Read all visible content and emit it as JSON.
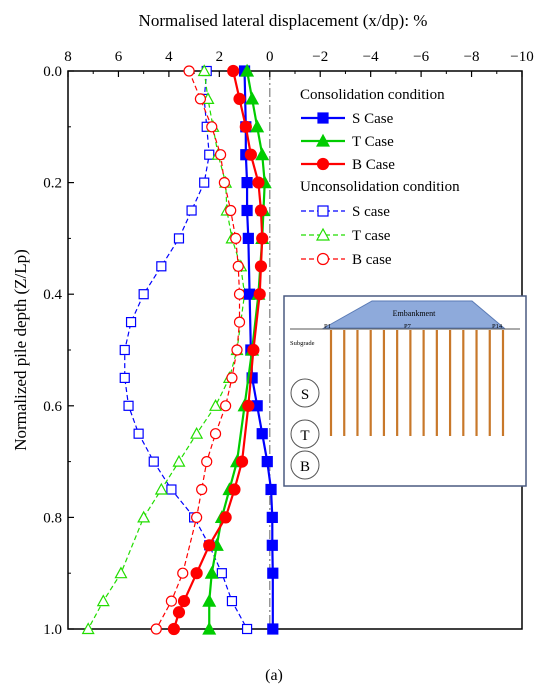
{
  "chart_data": {
    "type": "line",
    "title": "",
    "xlabel": "Normalised lateral displacement (x/dp): %",
    "ylabel": "Normalized pile depth (Z/Lp)",
    "caption": "(a)",
    "xlim": [
      8,
      -10
    ],
    "ylim": [
      0,
      1
    ],
    "x_ticks": [
      "8",
      "6",
      "4",
      "2",
      "0",
      "−2",
      "−4",
      "−6",
      "−8",
      "−10"
    ],
    "x_tick_values": [
      8,
      6,
      4,
      2,
      0,
      -2,
      -4,
      -6,
      -8,
      -10
    ],
    "y_ticks": [
      "0.0",
      "0.2",
      "0.4",
      "0.6",
      "0.8",
      "1.0"
    ],
    "y_tick_values": [
      0,
      0.2,
      0.4,
      0.6,
      0.8,
      1.0
    ],
    "reference_line_x": 0,
    "legend": {
      "position": "top-right",
      "group1": "Consolidation condition",
      "group2": "Unconsolidation condition"
    },
    "series": [
      {
        "name": "S Case",
        "color": "#0000ff",
        "style": "solid",
        "marker": "square",
        "filled": true,
        "x": [
          1.0,
          0.95,
          0.95,
          0.9,
          0.9,
          0.85,
          0.8,
          0.75,
          0.7,
          0.5,
          0.3,
          0.1,
          -0.05,
          -0.1,
          -0.1,
          -0.12,
          -0.12
        ],
        "y": [
          0.0,
          0.1,
          0.15,
          0.2,
          0.25,
          0.3,
          0.4,
          0.5,
          0.55,
          0.6,
          0.65,
          0.7,
          0.75,
          0.8,
          0.85,
          0.9,
          1.0
        ]
      },
      {
        "name": "T Case",
        "color": "#00cc00",
        "style": "solid",
        "marker": "triangle",
        "filled": true,
        "x": [
          0.9,
          0.7,
          0.5,
          0.3,
          0.2,
          0.25,
          0.3,
          0.45,
          0.7,
          1.0,
          1.3,
          1.6,
          1.9,
          2.1,
          2.3,
          2.4,
          2.4
        ],
        "y": [
          0.0,
          0.05,
          0.1,
          0.15,
          0.2,
          0.25,
          0.3,
          0.4,
          0.5,
          0.6,
          0.7,
          0.75,
          0.8,
          0.85,
          0.9,
          0.95,
          1.0
        ]
      },
      {
        "name": "B Case",
        "color": "#ff0000",
        "style": "solid",
        "marker": "circle",
        "filled": true,
        "x": [
          1.45,
          1.2,
          0.95,
          0.75,
          0.45,
          0.35,
          0.3,
          0.35,
          0.4,
          0.65,
          0.85,
          1.1,
          1.4,
          1.75,
          2.4,
          2.9,
          3.4,
          3.6,
          3.8
        ],
        "y": [
          0.0,
          0.05,
          0.1,
          0.15,
          0.2,
          0.25,
          0.3,
          0.35,
          0.4,
          0.5,
          0.6,
          0.7,
          0.75,
          0.8,
          0.85,
          0.9,
          0.95,
          0.97,
          1.0
        ]
      },
      {
        "name": "S case",
        "color": "#0000ff",
        "style": "dashed",
        "marker": "square",
        "filled": false,
        "x": [
          2.5,
          2.6,
          2.5,
          2.4,
          2.6,
          3.1,
          3.6,
          4.3,
          5.0,
          5.5,
          5.75,
          5.75,
          5.6,
          5.2,
          4.6,
          3.9,
          3.0,
          2.4,
          1.9,
          1.5,
          0.9
        ],
        "y": [
          0.0,
          0.05,
          0.1,
          0.15,
          0.2,
          0.25,
          0.3,
          0.35,
          0.4,
          0.45,
          0.5,
          0.55,
          0.6,
          0.65,
          0.7,
          0.75,
          0.8,
          0.85,
          0.9,
          0.95,
          1.0
        ]
      },
      {
        "name": "T case",
        "color": "#22dd00",
        "style": "dashed",
        "marker": "triangle",
        "filled": false,
        "x": [
          2.6,
          2.45,
          2.25,
          2.05,
          1.75,
          1.7,
          1.5,
          1.15,
          1.0,
          1.3,
          1.6,
          2.15,
          2.9,
          3.6,
          4.3,
          5.0,
          5.9,
          6.6,
          7.2
        ],
        "y": [
          0.0,
          0.05,
          0.1,
          0.15,
          0.2,
          0.25,
          0.3,
          0.35,
          0.4,
          0.5,
          0.55,
          0.6,
          0.65,
          0.7,
          0.75,
          0.8,
          0.9,
          0.95,
          1.0
        ]
      },
      {
        "name": "B case",
        "color": "#ff0000",
        "style": "dashed",
        "marker": "circle",
        "filled": false,
        "x": [
          3.2,
          2.75,
          2.3,
          1.95,
          1.8,
          1.55,
          1.35,
          1.25,
          1.2,
          1.2,
          1.3,
          1.5,
          1.75,
          2.15,
          2.5,
          2.7,
          2.9,
          3.45,
          3.9,
          4.5
        ],
        "y": [
          0.0,
          0.05,
          0.1,
          0.15,
          0.2,
          0.25,
          0.3,
          0.35,
          0.4,
          0.45,
          0.5,
          0.55,
          0.6,
          0.65,
          0.7,
          0.75,
          0.8,
          0.9,
          0.95,
          1.0
        ]
      }
    ],
    "inset": {
      "embankment_label": "Embankment",
      "subgrade_label": "Subgrade",
      "pile_labels": [
        "P1",
        "P7",
        "P14"
      ],
      "pile_count": 14,
      "case_labels": [
        "S",
        "T",
        "B"
      ]
    }
  }
}
